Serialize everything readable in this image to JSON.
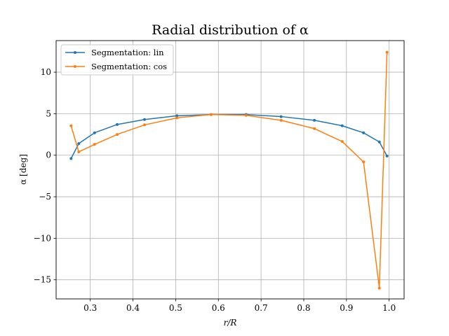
{
  "chart_data": {
    "type": "line",
    "title": "Radial distribution of α",
    "xlabel": "r/R",
    "ylabel": "α [deg]",
    "xlim": [
      0.22,
      1.035
    ],
    "ylim": [
      -17.3,
      13.8
    ],
    "xticks": [
      0.3,
      0.4,
      0.5,
      0.6,
      0.7,
      0.8,
      0.9,
      1.0
    ],
    "xtick_labels": [
      "0.3",
      "0.4",
      "0.5",
      "0.6",
      "0.7",
      "0.8",
      "0.9",
      "1.0"
    ],
    "yticks": [
      -15,
      -10,
      -5,
      0,
      5,
      10
    ],
    "ytick_labels": [
      "−15",
      "−10",
      "−5",
      "0",
      "5",
      "10"
    ],
    "grid": true,
    "legend_position": "top-left",
    "series": [
      {
        "name": "Segmentation: lin",
        "color": "#1f77b4",
        "x": [
          0.255,
          0.273,
          0.31,
          0.363,
          0.427,
          0.503,
          0.583,
          0.665,
          0.747,
          0.825,
          0.89,
          0.94,
          0.977,
          0.995
        ],
        "y": [
          -0.4,
          1.4,
          2.7,
          3.7,
          4.3,
          4.75,
          4.9,
          4.9,
          4.65,
          4.2,
          3.55,
          2.7,
          1.6,
          -0.1
        ]
      },
      {
        "name": "Segmentation: cos",
        "color": "#ff7f0e",
        "x": [
          0.255,
          0.273,
          0.31,
          0.363,
          0.427,
          0.503,
          0.583,
          0.665,
          0.747,
          0.825,
          0.89,
          0.94,
          0.977,
          0.995
        ],
        "y": [
          3.55,
          0.4,
          1.3,
          2.5,
          3.65,
          4.5,
          4.9,
          4.8,
          4.2,
          3.2,
          1.65,
          -0.8,
          -16.0,
          12.4
        ]
      }
    ]
  }
}
